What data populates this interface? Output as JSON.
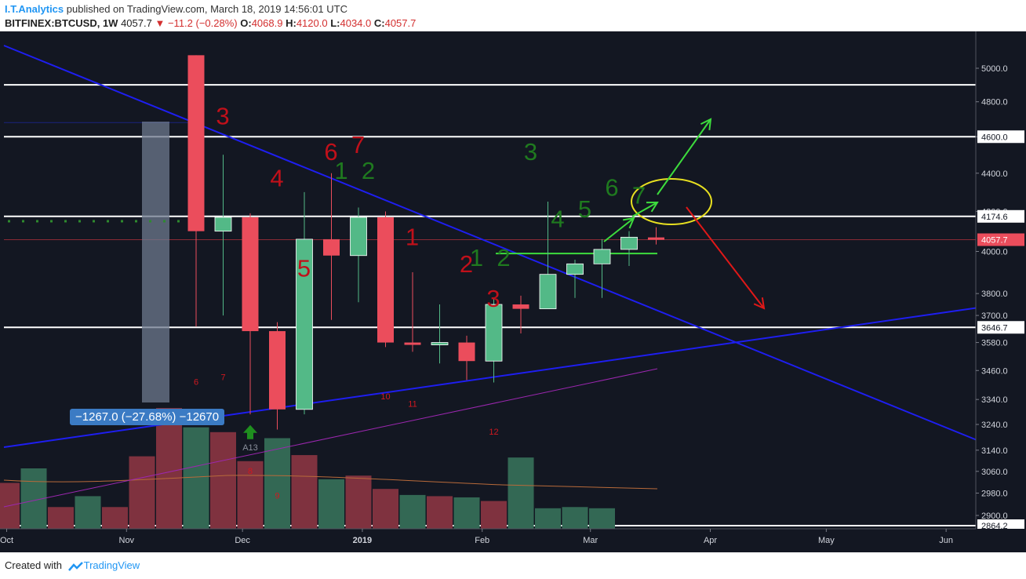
{
  "header": {
    "author": "I.T.Analytics",
    "published_text": "published on TradingView.com, March 18, 2019 14:56:01 UTC",
    "symbol": "BITFINEX:BTCUSD, 1W",
    "last": "4057.7",
    "down_arrow": "▼",
    "change": "−11.2 (−0.28%)",
    "o_label": "O:",
    "o_value": "4068.9",
    "h_label": "H:",
    "h_value": "4120.0",
    "l_label": "L:",
    "l_value": "4034.0",
    "c_label": "C:",
    "c_value": "4057.7"
  },
  "footer": {
    "created_text": "Created with",
    "brand": "TradingView"
  },
  "measure_label": "−1267.0 (−27.68%) −12670",
  "colors": {
    "background": "#131722",
    "up": "#53b987",
    "down": "#eb4d5c",
    "up_volume": "#336854",
    "down_volume": "#7f323f",
    "trendline": "#1e1ef0",
    "count_red": "#c0101a",
    "count_green": "#1f7a1f",
    "arrow_green": "#3ddc3d",
    "arrow_red": "#e01818",
    "ellipse": "#e8e020"
  },
  "chart_data": {
    "type": "candlestick",
    "interval": "1W",
    "ylim": [
      2864.2,
      5080
    ],
    "log_scale": true,
    "y_ticks": [
      5000,
      4800,
      4600,
      4400,
      4200,
      4000,
      3800,
      3700,
      3580,
      3460,
      3340,
      3240,
      3140,
      3060,
      2980,
      2900
    ],
    "y_tick_labels": [
      "5000.0",
      "4800.0",
      "4600.0",
      "4400.0",
      "4200.0",
      "4000.0",
      "3800.0",
      "3700.0",
      "3580.0",
      "3460.0",
      "3340.0",
      "3240.0",
      "3140.0",
      "3060.0",
      "2980.0",
      "2900.0"
    ],
    "x_ticks": [
      "Oct",
      "Nov",
      "Dec",
      "2019",
      "Feb",
      "Mar",
      "Apr",
      "May",
      "Jun"
    ],
    "price_badges": [
      {
        "value": 4600.0,
        "label": "4600.0",
        "style": "white"
      },
      {
        "value": 4174.6,
        "label": "4174.6",
        "style": "white"
      },
      {
        "value": 4057.7,
        "label": "4057.7",
        "style": "red"
      },
      {
        "value": 3646.7,
        "label": "3646.7",
        "style": "white"
      },
      {
        "value": 2864.2,
        "label": "2864.2",
        "style": "white"
      }
    ],
    "horizontal_levels": [
      4900,
      4600,
      4174.6,
      3646.7,
      2864.2
    ],
    "candles": [
      {
        "date": "2018-11-19",
        "open": 5080,
        "high": 5080,
        "low": 3650,
        "close": 4100
      },
      {
        "date": "2018-11-26",
        "open": 4100,
        "high": 4500,
        "low": 3700,
        "close": 4170
      },
      {
        "date": "2018-12-03",
        "open": 4170,
        "high": 4190,
        "low": 3280,
        "close": 3630
      },
      {
        "date": "2018-12-10",
        "open": 3630,
        "high": 3670,
        "low": 3220,
        "close": 3300
      },
      {
        "date": "2018-12-17",
        "open": 3300,
        "high": 4300,
        "low": 3280,
        "close": 4060
      },
      {
        "date": "2018-12-24",
        "open": 4060,
        "high": 4400,
        "low": 3680,
        "close": 3980
      },
      {
        "date": "2018-12-31",
        "open": 3980,
        "high": 4220,
        "low": 3760,
        "close": 4170
      },
      {
        "date": "2019-01-07",
        "open": 4170,
        "high": 4200,
        "low": 3560,
        "close": 3580
      },
      {
        "date": "2019-01-14",
        "open": 3580,
        "high": 3900,
        "low": 3540,
        "close": 3570
      },
      {
        "date": "2019-01-21",
        "open": 3570,
        "high": 3750,
        "low": 3490,
        "close": 3580
      },
      {
        "date": "2019-01-28",
        "open": 3580,
        "high": 3610,
        "low": 3420,
        "close": 3500
      },
      {
        "date": "2019-02-04",
        "open": 3500,
        "high": 3780,
        "low": 3410,
        "close": 3750
      },
      {
        "date": "2019-02-11",
        "open": 3750,
        "high": 3790,
        "low": 3620,
        "close": 3730
      },
      {
        "date": "2019-02-18",
        "open": 3730,
        "high": 4250,
        "low": 3730,
        "close": 3890
      },
      {
        "date": "2019-02-25",
        "open": 3890,
        "high": 3960,
        "low": 3780,
        "close": 3940
      },
      {
        "date": "2019-03-04",
        "open": 3940,
        "high": 4060,
        "low": 3780,
        "close": 4010
      },
      {
        "date": "2019-03-11",
        "open": 4010,
        "high": 4100,
        "low": 3930,
        "close": 4070
      },
      {
        "date": "2019-03-18",
        "open": 4068.9,
        "high": 4120.0,
        "low": 4034.0,
        "close": 4057.7
      }
    ],
    "volume": [
      {
        "date": "2018-09-24",
        "value": 0.25,
        "up": false
      },
      {
        "date": "2018-10-01",
        "value": 0.38,
        "up": false
      },
      {
        "date": "2018-10-08",
        "value": 0.5,
        "up": true
      },
      {
        "date": "2018-10-15",
        "value": 0.18,
        "up": false
      },
      {
        "date": "2018-10-22",
        "value": 0.27,
        "up": true
      },
      {
        "date": "2018-10-29",
        "value": 0.18,
        "up": false
      },
      {
        "date": "2018-11-05",
        "value": 0.6,
        "up": false
      },
      {
        "date": "2018-11-12",
        "value": 1.0,
        "up": false
      },
      {
        "date": "2018-11-19",
        "value": 0.84,
        "up": true
      },
      {
        "date": "2018-11-26",
        "value": 0.8,
        "up": false
      },
      {
        "date": "2018-12-03",
        "value": 0.56,
        "up": false
      },
      {
        "date": "2018-12-10",
        "value": 0.75,
        "up": true
      },
      {
        "date": "2018-12-17",
        "value": 0.61,
        "up": false
      },
      {
        "date": "2018-12-24",
        "value": 0.41,
        "up": true
      },
      {
        "date": "2018-12-31",
        "value": 0.44,
        "up": false
      },
      {
        "date": "2019-01-07",
        "value": 0.33,
        "up": false
      },
      {
        "date": "2019-01-14",
        "value": 0.28,
        "up": true
      },
      {
        "date": "2019-01-21",
        "value": 0.27,
        "up": false
      },
      {
        "date": "2019-01-28",
        "value": 0.26,
        "up": true
      },
      {
        "date": "2019-02-04",
        "value": 0.23,
        "up": false
      },
      {
        "date": "2019-02-11",
        "value": 0.59,
        "up": true
      },
      {
        "date": "2019-02-18",
        "value": 0.17,
        "up": true
      },
      {
        "date": "2019-02-25",
        "value": 0.18,
        "up": true
      },
      {
        "date": "2019-03-04",
        "value": 0.17,
        "up": true
      }
    ],
    "annotations": {
      "big_red_counts": [
        {
          "text": "3",
          "date": "2018-11-19",
          "price": 4670
        },
        {
          "text": "4",
          "date": "2018-12-03",
          "price": 4330
        },
        {
          "text": "5",
          "date": "2018-12-10",
          "price": 3880
        },
        {
          "text": "6",
          "date": "2018-12-17",
          "price": 4470
        },
        {
          "text": "7",
          "date": "2018-12-24",
          "price": 4510
        },
        {
          "text": "1",
          "date": "2019-01-07",
          "price": 4030
        },
        {
          "text": "2",
          "date": "2019-01-21",
          "price": 3900
        },
        {
          "text": "3",
          "date": "2019-01-28",
          "price": 3740
        }
      ],
      "big_green_counts": [
        {
          "text": "1",
          "date": "2018-12-31",
          "price": 4370
        },
        {
          "text": "2",
          "date": "2019-01-07",
          "price": 4370
        },
        {
          "text": "1",
          "date": "2019-02-04",
          "price": 3930
        },
        {
          "text": "2",
          "date": "2019-02-11",
          "price": 3930
        },
        {
          "text": "3",
          "date": "2019-02-18",
          "price": 4470
        },
        {
          "text": "4",
          "date": "2019-02-25",
          "price": 4120
        },
        {
          "text": "5",
          "date": "2019-03-04",
          "price": 4170
        },
        {
          "text": "6",
          "date": "2019-03-11",
          "price": 4280
        },
        {
          "text": "7",
          "date": "2019-03-18",
          "price": 4240
        }
      ],
      "small_red_counts": [
        {
          "text": "6",
          "date": "2018-11-19",
          "price": 3400
        },
        {
          "text": "7",
          "date": "2018-11-26",
          "price": 3420
        },
        {
          "text": "8",
          "date": "2018-12-03",
          "price": 3050
        },
        {
          "text": "9",
          "date": "2018-12-10",
          "price": 2960
        },
        {
          "text": "10",
          "date": "2019-01-07",
          "price": 3340
        },
        {
          "text": "11",
          "date": "2019-01-14",
          "price": 3310
        },
        {
          "text": "12",
          "date": "2019-02-04",
          "price": 3200
        }
      ],
      "signal_label": {
        "text": "A13",
        "date": "2018-12-03",
        "price": 3140
      }
    }
  }
}
